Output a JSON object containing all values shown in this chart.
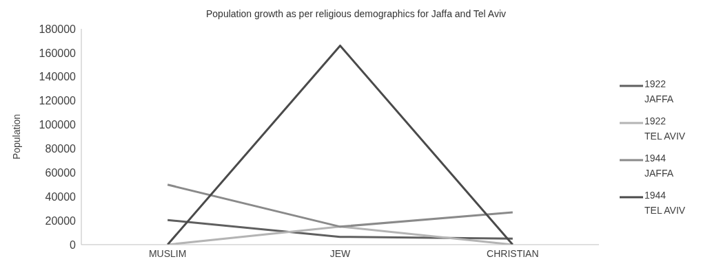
{
  "chart_data": {
    "type": "line",
    "title": "Population growth as per religious demographics for Jaffa and Tel Aviv",
    "ylabel": "Population",
    "categories": [
      "MUSLIM",
      "JEW",
      "CHRISTIAN"
    ],
    "series": [
      {
        "name": "1922 JAFFA",
        "color": "#5f5f5f",
        "values": [
          20500,
          6500,
          5000
        ]
      },
      {
        "name": "1922 TEL AVIV",
        "color": "#b4b4b4",
        "values": [
          0,
          15000,
          0
        ]
      },
      {
        "name": "1944 JAFFA",
        "color": "#8a8a8a",
        "values": [
          50000,
          15000,
          27000
        ]
      },
      {
        "name": "1944 TEL AVIV",
        "color": "#4a4a4a",
        "values": [
          0,
          166000,
          0
        ]
      }
    ],
    "ylim": [
      0,
      180000
    ],
    "yticks": [
      0,
      20000,
      40000,
      60000,
      80000,
      100000,
      120000,
      140000,
      160000,
      180000
    ],
    "grid": false,
    "legend": "right",
    "marker": "none",
    "line_style": "solid"
  }
}
